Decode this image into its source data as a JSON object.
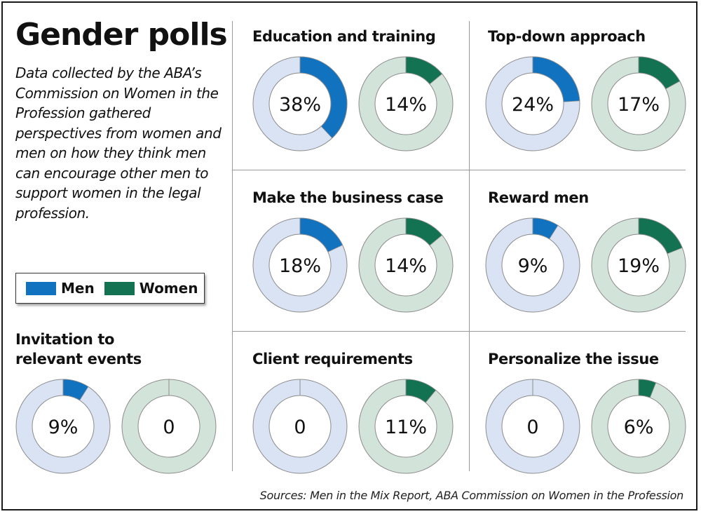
{
  "title": "Gender polls",
  "subtitle": "Data collected by the ABA’s Commission on Women in the Profession gathered perspectives from women and men on how they think men can encourage other men to support women in the legal profession.",
  "legend": {
    "men_label": "Men",
    "women_label": "Women"
  },
  "source": "Sources: Men in the Mix Report, ABA Commission on Women in the Profession",
  "colors": {
    "men": "#1173c0",
    "men_track": "#d9e3f3",
    "women": "#127251",
    "women_track": "#d2e3da",
    "ring_outline": "#8c8c8c"
  },
  "chart_data": {
    "type": "donut",
    "series": [
      {
        "name": "Men"
      },
      {
        "name": "Women"
      }
    ],
    "panels": [
      {
        "title": "Education and training",
        "men": {
          "value": 38,
          "label": "38%"
        },
        "women": {
          "value": 14,
          "label": "14%"
        }
      },
      {
        "title": "Top-down approach",
        "men": {
          "value": 24,
          "label": "24%"
        },
        "women": {
          "value": 17,
          "label": "17%"
        }
      },
      {
        "title": "Make the business case",
        "men": {
          "value": 18,
          "label": "18%"
        },
        "women": {
          "value": 14,
          "label": "14%"
        }
      },
      {
        "title": "Reward men",
        "men": {
          "value": 9,
          "label": "9%"
        },
        "women": {
          "value": 19,
          "label": "19%"
        }
      },
      {
        "title": "Invitation to relevant events",
        "men": {
          "value": 9,
          "label": "9%"
        },
        "women": {
          "value": 0,
          "label": "0"
        }
      },
      {
        "title": "Client requirements",
        "men": {
          "value": 0,
          "label": "0"
        },
        "women": {
          "value": 11,
          "label": "11%"
        }
      },
      {
        "title": "Personalize the issue",
        "men": {
          "value": 0,
          "label": "0"
        },
        "women": {
          "value": 6,
          "label": "6%"
        }
      }
    ]
  }
}
